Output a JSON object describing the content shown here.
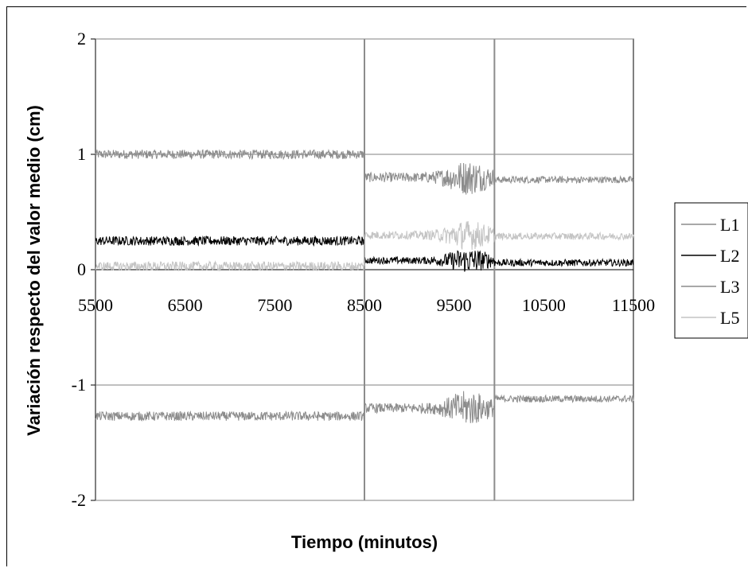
{
  "chart_data": {
    "type": "line",
    "title": "",
    "xlabel": "Tiempo (minutos)",
    "ylabel": "Variación respecto del valor medio (cm)",
    "xlim": [
      5500,
      11500
    ],
    "ylim": [
      -2,
      2
    ],
    "x_ticks": [
      "5500",
      "6500",
      "7500",
      "8500",
      "9500",
      "10500",
      "11500"
    ],
    "y_ticks": [
      "2",
      "1",
      "0",
      "-1",
      "-2"
    ],
    "grid": "horizontal major gridlines",
    "legend_position": "right",
    "vertical_markers": [
      8500,
      9950
    ],
    "series": [
      {
        "name": "L1",
        "color": "#8c8c8c",
        "segments": [
          {
            "x": [
              5500,
              8500
            ],
            "mean": 1.0,
            "noise": 0.04
          },
          {
            "x": [
              8500,
              9950
            ],
            "mean": 0.8,
            "noise": 0.07
          },
          {
            "x": [
              9950,
              11500
            ],
            "mean": 0.78,
            "noise": 0.03
          }
        ]
      },
      {
        "name": "L2",
        "color": "#000000",
        "segments": [
          {
            "x": [
              5500,
              8500
            ],
            "mean": 0.25,
            "noise": 0.04
          },
          {
            "x": [
              8500,
              9950
            ],
            "mean": 0.08,
            "noise": 0.05
          },
          {
            "x": [
              9950,
              11500
            ],
            "mean": 0.06,
            "noise": 0.03
          }
        ]
      },
      {
        "name": "L3",
        "color": "#8c8c8c",
        "segments": [
          {
            "x": [
              5500,
              8500
            ],
            "mean": -1.27,
            "noise": 0.04
          },
          {
            "x": [
              8500,
              9950
            ],
            "mean": -1.2,
            "noise": 0.07
          },
          {
            "x": [
              9950,
              11500
            ],
            "mean": -1.12,
            "noise": 0.03
          }
        ]
      },
      {
        "name": "L5",
        "color": "#c4c4c4",
        "segments": [
          {
            "x": [
              5500,
              8500
            ],
            "mean": 0.03,
            "noise": 0.04
          },
          {
            "x": [
              8500,
              9950
            ],
            "mean": 0.3,
            "noise": 0.06
          },
          {
            "x": [
              9950,
              11500
            ],
            "mean": 0.29,
            "noise": 0.03
          }
        ]
      }
    ]
  }
}
